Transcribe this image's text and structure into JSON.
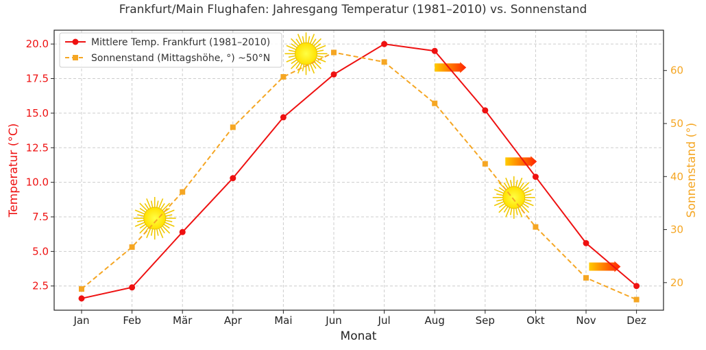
{
  "chart_data": {
    "type": "line",
    "title": "Frankfurt/Main Flughafen: Jahresgang Temperatur (1981–2010) vs. Sonnenstand",
    "xlabel": "Monat",
    "ylabel_left": "Temperatur (°C)",
    "ylabel_right": "Sonnenstand (°)",
    "categories": [
      "Jan",
      "Feb",
      "Mär",
      "Apr",
      "Mai",
      "Jun",
      "Jul",
      "Aug",
      "Sep",
      "Okt",
      "Nov",
      "Dez"
    ],
    "ylim_left": [
      0.75,
      21.0
    ],
    "ylim_right": [
      14.8,
      67.6
    ],
    "yticks_left": [
      "2.5",
      "5.0",
      "7.5",
      "10.0",
      "12.5",
      "15.0",
      "17.5",
      "20.0"
    ],
    "yticks_right": [
      "20",
      "30",
      "40",
      "50",
      "60"
    ],
    "grid": true,
    "legend_position": "top-left",
    "series": [
      {
        "name": "Mittlere Temp. Frankfurt (1981–2010)",
        "axis": "left",
        "color": "#ee1111",
        "marker": "circle",
        "line_style": "solid",
        "values": [
          1.6,
          2.4,
          6.4,
          10.3,
          14.7,
          17.8,
          20.0,
          19.5,
          15.2,
          10.4,
          5.6,
          2.5
        ]
      },
      {
        "name": "Sonnenstand (Mittagshöhe, °) ~50°N",
        "axis": "right",
        "color": "#f5a623",
        "marker": "square",
        "line_style": "dashed",
        "values": [
          18.8,
          26.7,
          37.1,
          49.3,
          58.8,
          63.4,
          61.6,
          53.8,
          42.4,
          30.5,
          20.9,
          16.8
        ]
      }
    ],
    "decorations": [
      {
        "icon": "sun-icon",
        "x_index": 1.45,
        "y_left": 7.4
      },
      {
        "icon": "sun-icon",
        "x_index": 4.45,
        "y_left": 19.3
      },
      {
        "icon": "sun-icon",
        "x_index": 8.57,
        "y_left": 8.9
      },
      {
        "icon": "arrow-right-icon",
        "x_index": 7.0,
        "y_left": 18.3
      },
      {
        "icon": "arrow-right-icon",
        "x_index": 8.4,
        "y_left": 11.5
      },
      {
        "icon": "arrow-right-icon",
        "x_index": 10.06,
        "y_left": 3.9
      }
    ]
  }
}
